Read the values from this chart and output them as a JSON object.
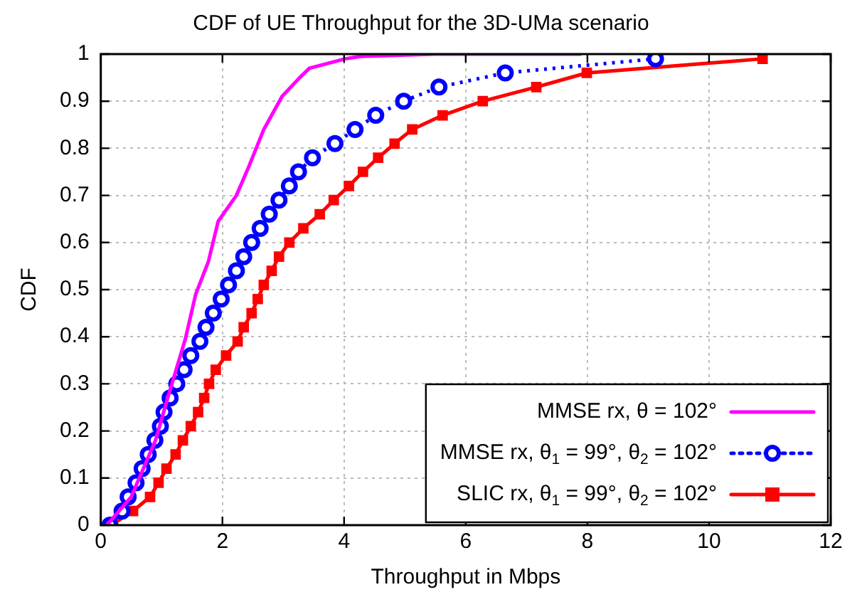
{
  "chart_data": {
    "type": "line",
    "title": "CDF of UE Throughput for the 3D-UMa scenario",
    "xlabel": "Throughput in Mbps",
    "ylabel": "CDF",
    "xlim": [
      0,
      12
    ],
    "xticks": [
      0,
      2,
      4,
      6,
      8,
      10,
      12
    ],
    "ylim": [
      0,
      1
    ],
    "yticks": [
      0,
      0.1,
      0.2,
      0.3,
      0.4,
      0.5,
      0.6,
      0.7,
      0.8,
      0.9,
      1
    ],
    "grid": true,
    "legend": "bottom right",
    "series": [
      {
        "name": "MMSE rx, θ = 102°",
        "color": "#ff00ff",
        "marker": "none",
        "line_style": "solid",
        "x": [
          0.1,
          0.5,
          0.9,
          1.1,
          1.39,
          1.56,
          1.77,
          1.93,
          2.23,
          2.43,
          2.68,
          2.98,
          3.27,
          3.43,
          4.02,
          4.27,
          5.5,
          7.9
        ],
        "values": [
          0,
          0.06,
          0.18,
          0.27,
          0.395,
          0.49,
          0.56,
          0.645,
          0.7,
          0.76,
          0.84,
          0.91,
          0.95,
          0.97,
          0.99,
          0.995,
          1,
          1
        ]
      },
      {
        "name": "MMSE rx, θ$_{1}$ = 99°, θ$_{2}$ = 102°",
        "color": "#0000ff",
        "marker": "circle",
        "line_style": "dotted",
        "x": [
          0.15,
          0.35,
          0.45,
          0.58,
          0.68,
          0.78,
          0.89,
          0.98,
          1.04,
          1.14,
          1.25,
          1.37,
          1.48,
          1.63,
          1.73,
          1.85,
          1.98,
          2.1,
          2.23,
          2.35,
          2.48,
          2.62,
          2.77,
          2.93,
          3.1,
          3.25,
          3.48,
          3.85,
          4.18,
          4.52,
          4.98,
          5.56,
          6.65,
          9.12
        ],
        "values": [
          0,
          0.03,
          0.06,
          0.09,
          0.12,
          0.15,
          0.18,
          0.21,
          0.24,
          0.27,
          0.3,
          0.33,
          0.36,
          0.39,
          0.42,
          0.45,
          0.48,
          0.51,
          0.54,
          0.57,
          0.6,
          0.63,
          0.66,
          0.69,
          0.72,
          0.75,
          0.78,
          0.81,
          0.84,
          0.87,
          0.9,
          0.93,
          0.96,
          0.99
        ]
      },
      {
        "name": "SLIC rx, θ$_{1}$ = 99°, θ$_{2}$ = 102°",
        "color": "#ff0000",
        "marker": "square",
        "line_style": "solid",
        "x": [
          0.17,
          0.53,
          0.81,
          0.95,
          1.08,
          1.23,
          1.35,
          1.48,
          1.6,
          1.7,
          1.78,
          1.89,
          2.06,
          2.25,
          2.35,
          2.48,
          2.58,
          2.68,
          2.81,
          2.93,
          3.1,
          3.33,
          3.6,
          3.83,
          4.08,
          4.31,
          4.56,
          4.83,
          5.12,
          5.62,
          6.28,
          7.16,
          7.99,
          10.88
        ],
        "values": [
          0,
          0.03,
          0.06,
          0.09,
          0.12,
          0.15,
          0.18,
          0.21,
          0.24,
          0.27,
          0.3,
          0.33,
          0.36,
          0.39,
          0.42,
          0.45,
          0.48,
          0.51,
          0.54,
          0.57,
          0.6,
          0.63,
          0.66,
          0.69,
          0.72,
          0.75,
          0.78,
          0.81,
          0.84,
          0.87,
          0.9,
          0.93,
          0.96,
          0.99
        ]
      }
    ]
  }
}
